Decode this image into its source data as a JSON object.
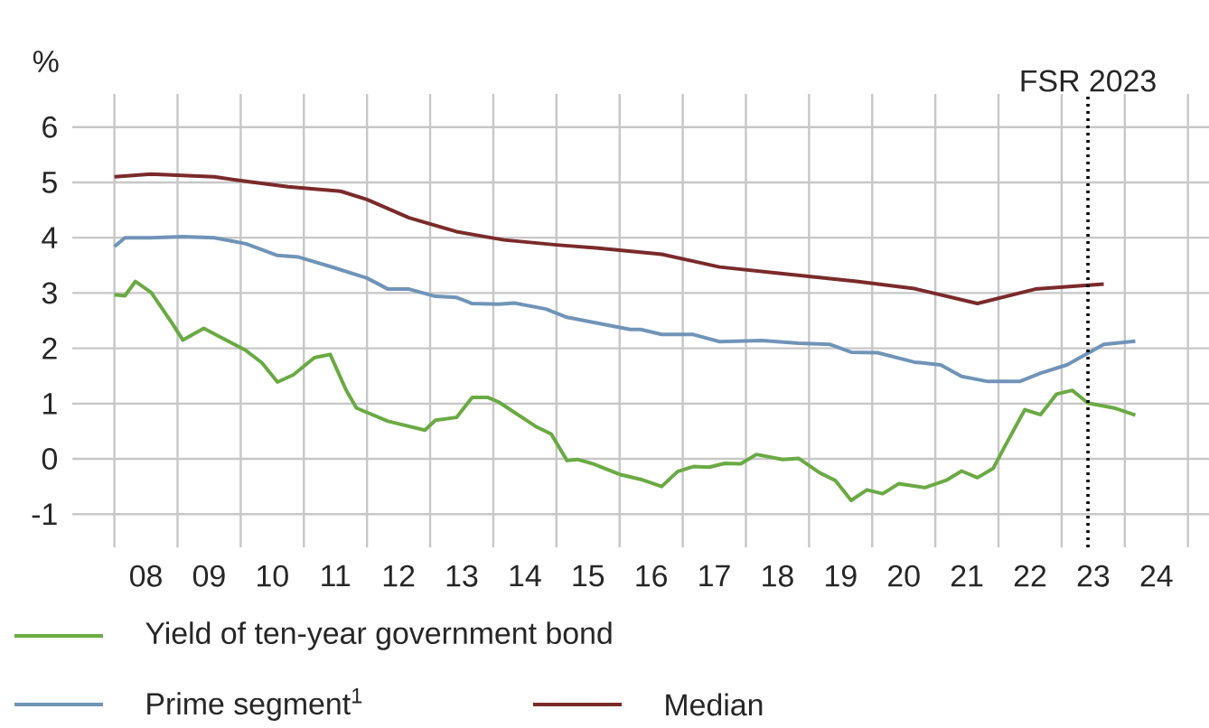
{
  "chart_data": {
    "type": "line",
    "ylabel": "%",
    "xlim": [
      "2007-05",
      "2025-05"
    ],
    "ylim": [
      -1.6,
      6.6
    ],
    "xticks": [
      {
        "value": "2008",
        "label": null
      },
      {
        "value": "2008-07",
        "label": "08"
      },
      {
        "value": "2009",
        "label": null
      },
      {
        "value": "2009-07",
        "label": "09"
      },
      {
        "value": "2010",
        "label": null
      },
      {
        "value": "2010-07",
        "label": "10"
      },
      {
        "value": "2011",
        "label": null
      },
      {
        "value": "2011-07",
        "label": "11"
      },
      {
        "value": "2012",
        "label": null
      },
      {
        "value": "2012-07",
        "label": "12"
      },
      {
        "value": "2013",
        "label": null
      },
      {
        "value": "2013-07",
        "label": "13"
      },
      {
        "value": "2014",
        "label": null
      },
      {
        "value": "2014-07",
        "label": "14"
      },
      {
        "value": "2015",
        "label": null
      },
      {
        "value": "2015-07",
        "label": "15"
      },
      {
        "value": "2016",
        "label": null
      },
      {
        "value": "2016-07",
        "label": "16"
      },
      {
        "value": "2017",
        "label": null
      },
      {
        "value": "2017-07",
        "label": "17"
      },
      {
        "value": "2018",
        "label": null
      },
      {
        "value": "2018-07",
        "label": "18"
      },
      {
        "value": "2019",
        "label": null
      },
      {
        "value": "2019-07",
        "label": "19"
      },
      {
        "value": "2020",
        "label": null
      },
      {
        "value": "2020-07",
        "label": "20"
      },
      {
        "value": "2021",
        "label": null
      },
      {
        "value": "2021-07",
        "label": "21"
      },
      {
        "value": "2022",
        "label": null
      },
      {
        "value": "2022-07",
        "label": "22"
      },
      {
        "value": "2023",
        "label": null
      },
      {
        "value": "2023-07",
        "label": "23"
      },
      {
        "value": "2024",
        "label": null
      },
      {
        "value": "2024-07",
        "label": "24"
      },
      {
        "value": "2025",
        "label": null
      }
    ],
    "yticks": [
      -1,
      0,
      1,
      2,
      3,
      4,
      5,
      6
    ],
    "grid": true,
    "legend": "bottom",
    "marker": "none",
    "line_style": "solid",
    "ref_lines": [
      {
        "axis": "x",
        "value": "2023-06",
        "label": "FSR 2023",
        "color": "#000000",
        "line_style": "dotted"
      }
    ],
    "series": [
      {
        "name": "Yield of ten-year government bond",
        "color": "#6aaa44",
        "x": [
          "2008-01",
          "2008-03",
          "2008-05",
          "2008-08",
          "2008-12",
          "2009-02",
          "2009-06",
          "2009-08",
          "2010-02",
          "2010-05",
          "2010-08",
          "2010-11",
          "2011-03",
          "2011-06",
          "2011-09",
          "2011-11",
          "2012-05",
          "2012-12",
          "2013-02",
          "2013-06",
          "2013-09",
          "2013-12",
          "2014-02",
          "2014-09",
          "2014-12",
          "2015-03",
          "2015-05",
          "2015-08",
          "2016-01",
          "2016-05",
          "2016-09",
          "2016-12",
          "2017-03",
          "2017-06",
          "2017-09",
          "2017-12",
          "2018-03",
          "2018-08",
          "2018-11",
          "2019-03",
          "2019-06",
          "2019-09",
          "2019-12",
          "2020-03",
          "2020-06",
          "2020-11",
          "2021-03",
          "2021-06",
          "2021-09",
          "2021-12",
          "2022-02",
          "2022-06",
          "2022-09",
          "2022-12",
          "2023-03",
          "2023-06",
          "2023-11",
          "2024-03"
        ],
        "values": [
          2.97,
          2.95,
          3.21,
          3.01,
          2.45,
          2.15,
          2.36,
          2.26,
          1.96,
          1.74,
          1.39,
          1.52,
          1.83,
          1.89,
          1.25,
          0.92,
          0.68,
          0.52,
          0.7,
          0.75,
          1.11,
          1.11,
          1.03,
          0.59,
          0.45,
          -0.03,
          -0.01,
          -0.09,
          -0.28,
          -0.37,
          -0.5,
          -0.23,
          -0.14,
          -0.15,
          -0.08,
          -0.09,
          0.08,
          -0.01,
          0.01,
          -0.25,
          -0.39,
          -0.75,
          -0.56,
          -0.63,
          -0.45,
          -0.52,
          -0.39,
          -0.22,
          -0.34,
          -0.17,
          0.19,
          0.89,
          0.8,
          1.17,
          1.24,
          1.01,
          0.92,
          0.79
        ]
      },
      {
        "name": "Prime segment$^{1}$",
        "color": "#7094b8",
        "x": [
          "2008-01",
          "2008-03",
          "2008-08",
          "2009-02",
          "2009-08",
          "2010-02",
          "2010-08",
          "2010-12",
          "2011-06",
          "2012-01",
          "2012-05",
          "2012-09",
          "2013-02",
          "2013-06",
          "2013-09",
          "2014-02",
          "2014-05",
          "2014-11",
          "2015-03",
          "2015-09",
          "2016-03",
          "2016-05",
          "2016-09",
          "2017-03",
          "2017-08",
          "2018-04",
          "2018-11",
          "2019-05",
          "2019-09",
          "2020-02",
          "2020-09",
          "2021-02",
          "2021-06",
          "2021-11",
          "2022-05",
          "2022-09",
          "2023-02",
          "2023-09",
          "2024-03"
        ],
        "values": [
          3.84,
          4.0,
          4.0,
          4.02,
          4.0,
          3.89,
          3.68,
          3.65,
          3.48,
          3.27,
          3.07,
          3.07,
          2.94,
          2.92,
          2.81,
          2.8,
          2.82,
          2.71,
          2.56,
          2.45,
          2.34,
          2.34,
          2.25,
          2.25,
          2.12,
          2.14,
          2.09,
          2.07,
          1.93,
          1.92,
          1.75,
          1.7,
          1.49,
          1.4,
          1.4,
          1.55,
          1.7,
          2.07,
          2.13
        ]
      },
      {
        "name": "Median",
        "color": "#7b2a2a",
        "x": [
          "2008-01",
          "2008-08",
          "2009-08",
          "2010-02",
          "2010-10",
          "2011-08",
          "2012-01",
          "2012-09",
          "2013-06",
          "2014-03",
          "2015-01",
          "2015-09",
          "2016-09",
          "2017-08",
          "2018-08",
          "2019-10",
          "2020-09",
          "2021-09",
          "2022-08",
          "2023-09"
        ],
        "values": [
          5.1,
          5.15,
          5.1,
          5.02,
          4.92,
          4.84,
          4.69,
          4.36,
          4.11,
          3.96,
          3.87,
          3.81,
          3.7,
          3.47,
          3.35,
          3.21,
          3.08,
          2.81,
          3.07,
          3.16
        ]
      }
    ]
  }
}
